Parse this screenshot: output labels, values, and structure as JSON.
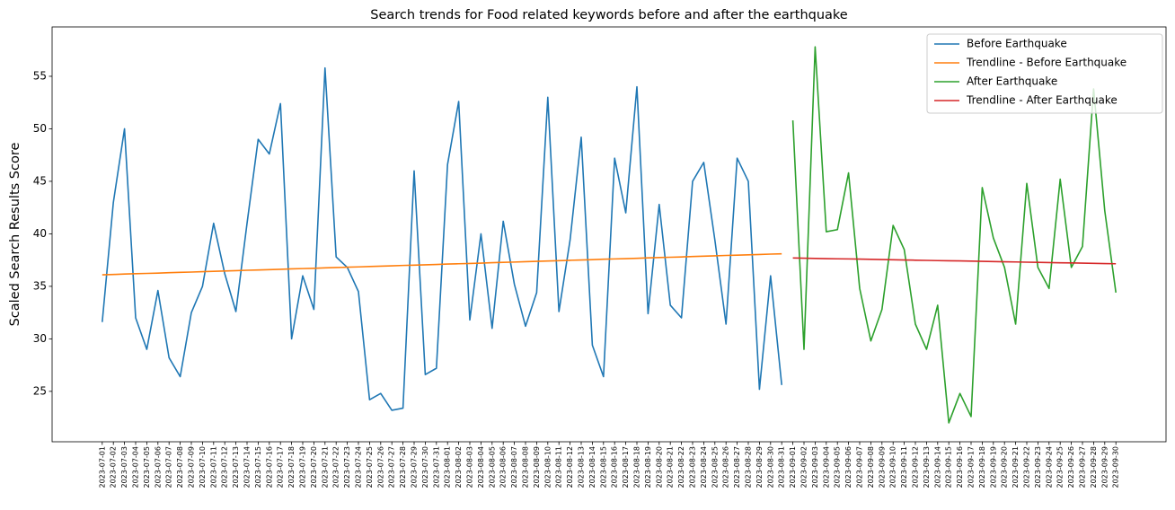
{
  "chart_data": {
    "type": "line",
    "title": "Search trends for Food related keywords before and after the earthquake",
    "y_label": "Scaled Search Results Score",
    "categories": [
      "2023-07-01",
      "2023-07-02",
      "2023-07-03",
      "2023-07-04",
      "2023-07-05",
      "2023-07-06",
      "2023-07-07",
      "2023-07-08",
      "2023-07-09",
      "2023-07-10",
      "2023-07-11",
      "2023-07-12",
      "2023-07-13",
      "2023-07-14",
      "2023-07-15",
      "2023-07-16",
      "2023-07-17",
      "2023-07-18",
      "2023-07-19",
      "2023-07-20",
      "2023-07-21",
      "2023-07-22",
      "2023-07-23",
      "2023-07-24",
      "2023-07-25",
      "2023-07-26",
      "2023-07-27",
      "2023-07-28",
      "2023-07-29",
      "2023-07-30",
      "2023-07-31",
      "2023-08-01",
      "2023-08-02",
      "2023-08-03",
      "2023-08-04",
      "2023-08-05",
      "2023-08-06",
      "2023-08-07",
      "2023-08-08",
      "2023-08-09",
      "2023-08-10",
      "2023-08-11",
      "2023-08-12",
      "2023-08-13",
      "2023-08-14",
      "2023-08-15",
      "2023-08-16",
      "2023-08-17",
      "2023-08-18",
      "2023-08-19",
      "2023-08-20",
      "2023-08-21",
      "2023-08-22",
      "2023-08-23",
      "2023-08-24",
      "2023-08-25",
      "2023-08-26",
      "2023-08-27",
      "2023-08-28",
      "2023-08-29",
      "2023-08-30",
      "2023-08-31",
      "2023-09-01",
      "2023-09-02",
      "2023-09-03",
      "2023-09-04",
      "2023-09-05",
      "2023-09-06",
      "2023-09-07",
      "2023-09-08",
      "2023-09-09",
      "2023-09-10",
      "2023-09-11",
      "2023-09-12",
      "2023-09-13",
      "2023-09-14",
      "2023-09-15",
      "2023-09-16",
      "2023-09-17",
      "2023-09-18",
      "2023-09-19",
      "2023-09-20",
      "2023-09-21",
      "2023-09-22",
      "2023-09-23",
      "2023-09-24",
      "2023-09-25",
      "2023-09-26",
      "2023-09-27",
      "2023-09-28",
      "2023-09-29",
      "2023-09-30"
    ],
    "series": [
      {
        "name": "Before Earthquake",
        "color": "#1f77b4",
        "values": [
          31.6,
          43,
          50,
          32,
          29,
          34.6,
          28.2,
          26.4,
          32.5,
          35,
          41,
          36.2,
          32.6,
          41,
          49,
          47.6,
          52.4,
          30,
          36,
          32.8,
          55.8,
          37.8,
          36.8,
          34.5,
          24.2,
          24.8,
          23.2,
          23.4,
          46,
          26.6,
          27.2,
          46.6,
          52.6,
          31.8,
          40,
          31,
          41.2,
          35.2,
          31.2,
          34.4,
          53,
          32.6,
          39.4,
          49.2,
          29.4,
          26.4,
          47.2,
          42,
          54,
          32.4,
          42.8,
          33.2,
          32,
          45,
          46.8,
          39.4,
          31.4,
          47.2,
          45,
          25.2,
          36,
          25.6,
          null,
          null,
          null,
          null,
          null,
          null,
          null,
          null,
          null,
          null,
          null,
          null,
          null,
          null,
          null,
          null,
          null,
          null,
          null,
          null,
          null,
          null,
          null,
          null,
          null,
          null,
          null,
          null,
          null,
          null
        ]
      },
      {
        "name": "Trendline - Before Earthquake",
        "color": "#ff7f0e",
        "values": [
          36.1,
          36.13,
          36.17,
          36.2,
          36.23,
          36.26,
          36.3,
          36.33,
          36.36,
          36.4,
          36.43,
          36.46,
          36.49,
          36.53,
          36.56,
          36.59,
          36.62,
          36.66,
          36.69,
          36.72,
          36.76,
          36.79,
          36.82,
          36.85,
          36.89,
          36.92,
          36.95,
          36.99,
          37.02,
          37.05,
          37.08,
          37.12,
          37.15,
          37.18,
          37.21,
          37.25,
          37.28,
          37.31,
          37.35,
          37.38,
          37.41,
          37.44,
          37.48,
          37.51,
          37.54,
          37.58,
          37.61,
          37.64,
          37.67,
          37.71,
          37.74,
          37.77,
          37.8,
          37.84,
          37.87,
          37.9,
          37.94,
          37.97,
          38.0,
          38.03,
          38.07,
          38.1,
          null,
          null,
          null,
          null,
          null,
          null,
          null,
          null,
          null,
          null,
          null,
          null,
          null,
          null,
          null,
          null,
          null,
          null,
          null,
          null,
          null,
          null,
          null,
          null,
          null,
          null,
          null,
          null,
          null,
          null
        ]
      },
      {
        "name": "After Earthquake",
        "color": "#2ca02c",
        "values": [
          null,
          null,
          null,
          null,
          null,
          null,
          null,
          null,
          null,
          null,
          null,
          null,
          null,
          null,
          null,
          null,
          null,
          null,
          null,
          null,
          null,
          null,
          null,
          null,
          null,
          null,
          null,
          null,
          null,
          null,
          null,
          null,
          null,
          null,
          null,
          null,
          null,
          null,
          null,
          null,
          null,
          null,
          null,
          null,
          null,
          null,
          null,
          null,
          null,
          null,
          null,
          null,
          null,
          null,
          null,
          null,
          null,
          null,
          null,
          null,
          null,
          null,
          50.8,
          29,
          57.8,
          40.2,
          40.4,
          45.8,
          34.8,
          29.8,
          32.8,
          40.8,
          38.5,
          31.4,
          29,
          33.2,
          22,
          24.8,
          22.6,
          44.4,
          39.6,
          36.8,
          31.4,
          44.8,
          36.8,
          34.8,
          45.2,
          36.8,
          38.8,
          53.8,
          42.2,
          34.4
        ]
      },
      {
        "name": "Trendline - After Earthquake",
        "color": "#d62728",
        "values": [
          null,
          null,
          null,
          null,
          null,
          null,
          null,
          null,
          null,
          null,
          null,
          null,
          null,
          null,
          null,
          null,
          null,
          null,
          null,
          null,
          null,
          null,
          null,
          null,
          null,
          null,
          null,
          null,
          null,
          null,
          null,
          null,
          null,
          null,
          null,
          null,
          null,
          null,
          null,
          null,
          null,
          null,
          null,
          null,
          null,
          null,
          null,
          null,
          null,
          null,
          null,
          null,
          null,
          null,
          null,
          null,
          null,
          null,
          null,
          null,
          null,
          null,
          37.7,
          37.68,
          37.66,
          37.64,
          37.62,
          37.61,
          37.59,
          37.57,
          37.55,
          37.53,
          37.51,
          37.49,
          37.47,
          37.45,
          37.43,
          37.42,
          37.4,
          37.38,
          37.36,
          37.34,
          37.32,
          37.3,
          37.28,
          37.26,
          37.24,
          37.23,
          37.21,
          37.19,
          37.17,
          37.15
        ]
      }
    ],
    "ylim": [
      20.2,
      59.7
    ],
    "yticks": [
      25,
      30,
      35,
      40,
      45,
      50,
      55
    ],
    "grid": false,
    "legend": "upper right"
  }
}
